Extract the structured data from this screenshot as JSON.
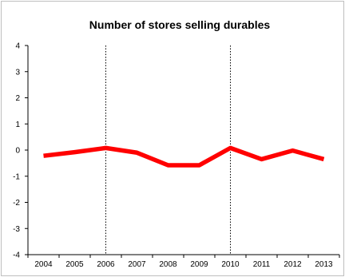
{
  "chart_data": {
    "type": "line",
    "title": "Number of stores selling durables",
    "xlabel": "",
    "ylabel": "",
    "categories": [
      "2004",
      "2005",
      "2006",
      "2007",
      "2008",
      "2009",
      "2010",
      "2011",
      "2012",
      "2013"
    ],
    "series": [
      {
        "values": [
          -0.22,
          -0.08,
          0.08,
          -0.1,
          -0.58,
          -0.58,
          0.08,
          -0.35,
          -0.02,
          -0.35
        ]
      }
    ],
    "ylim": [
      -4,
      4
    ],
    "yticks": [
      -4,
      -3,
      -2,
      -1,
      0,
      1,
      2,
      3,
      4
    ],
    "grid": false,
    "legend": "none",
    "vertical_markers": [
      "2006",
      "2010"
    ],
    "line_color": "#ff0000",
    "axis_color": "#000000"
  }
}
